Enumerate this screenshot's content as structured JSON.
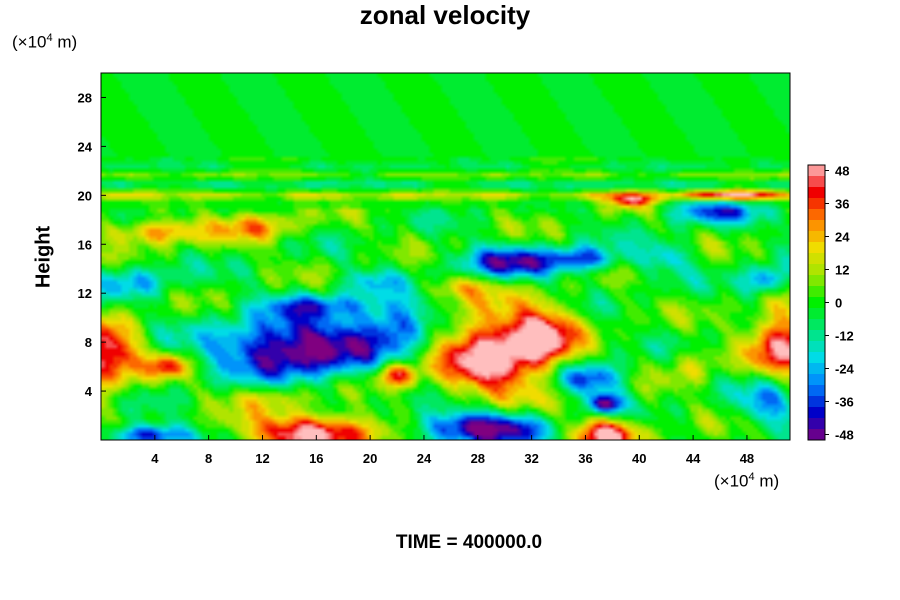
{
  "chart_data": {
    "type": "heatmap",
    "title": "zonal velocity",
    "ylabel": "Height",
    "xlabel": "",
    "x_unit": "(×10^4 m)",
    "y_unit": "(×10^4 m)",
    "x_unit_parts": {
      "prefix": "(×10",
      "exp": "4",
      "suffix": " m)"
    },
    "y_unit_parts": {
      "prefix": "(×10",
      "exp": "4",
      "suffix": " m)"
    },
    "xlim": [
      0,
      51.2
    ],
    "ylim": [
      0,
      30
    ],
    "x_ticks": [
      "4",
      "8",
      "12",
      "16",
      "20",
      "24",
      "28",
      "32",
      "36",
      "40",
      "44",
      "48"
    ],
    "y_ticks": [
      "4",
      "8",
      "12",
      "16",
      "20",
      "24",
      "28"
    ],
    "colorbar": {
      "range": [
        -50,
        50
      ],
      "labels": [
        "48",
        "36",
        "24",
        "12",
        "0",
        "-12",
        "-24",
        "-36",
        "-48"
      ],
      "low_color": "#800080",
      "high_color": "#ffc0c0"
    },
    "features": [
      {
        "x": 14.5,
        "y": 7.5,
        "rx": 6.0,
        "ry": 2.5,
        "value": -50
      },
      {
        "x": 22.0,
        "y": 9.5,
        "rx": 3.0,
        "ry": 2.0,
        "value": -30
      },
      {
        "x": 29.0,
        "y": 7.0,
        "rx": 4.0,
        "ry": 3.5,
        "value": 48
      },
      {
        "x": 33.0,
        "y": 8.5,
        "rx": 2.5,
        "ry": 2.5,
        "value": 35
      },
      {
        "x": 16.0,
        "y": 0.6,
        "rx": 5.0,
        "ry": 1.5,
        "value": 48
      },
      {
        "x": 37.5,
        "y": 0.5,
        "rx": 2.5,
        "ry": 1.3,
        "value": 45
      },
      {
        "x": 28.0,
        "y": 1.0,
        "rx": 5.0,
        "ry": 1.4,
        "value": -48
      },
      {
        "x": 3.5,
        "y": 0.4,
        "rx": 3.0,
        "ry": 0.9,
        "value": -40
      },
      {
        "x": 0.5,
        "y": 7.0,
        "rx": 2.2,
        "ry": 2.8,
        "value": 42
      },
      {
        "x": 50.5,
        "y": 8.0,
        "rx": 2.2,
        "ry": 3.0,
        "value": 40
      },
      {
        "x": 30.5,
        "y": 14.5,
        "rx": 4.0,
        "ry": 1.3,
        "value": -35
      },
      {
        "x": 36.0,
        "y": 14.8,
        "rx": 2.5,
        "ry": 1.0,
        "value": -30
      },
      {
        "x": 36.5,
        "y": 5.0,
        "rx": 2.5,
        "ry": 1.3,
        "value": -32
      },
      {
        "x": 37.5,
        "y": 3.0,
        "rx": 1.2,
        "ry": 0.8,
        "value": -42
      },
      {
        "x": 22.0,
        "y": 5.3,
        "rx": 1.5,
        "ry": 1.0,
        "value": 36
      },
      {
        "x": 4.0,
        "y": 17.0,
        "rx": 3.5,
        "ry": 1.0,
        "value": 28
      },
      {
        "x": 11.5,
        "y": 17.5,
        "rx": 3.0,
        "ry": 1.2,
        "value": 22
      },
      {
        "x": 45.5,
        "y": 18.7,
        "rx": 3.5,
        "ry": 1.0,
        "value": -28
      },
      {
        "x": 39.5,
        "y": 19.6,
        "rx": 1.8,
        "ry": 0.6,
        "value": 38
      },
      {
        "x": 47.0,
        "y": 20.0,
        "rx": 2.8,
        "ry": 0.4,
        "value": 42
      },
      {
        "x": 49.5,
        "y": 13.0,
        "rx": 1.8,
        "ry": 1.2,
        "value": -30
      },
      {
        "x": 2.5,
        "y": 13.0,
        "rx": 3.0,
        "ry": 1.4,
        "value": -20
      },
      {
        "x": 12.5,
        "y": 3.5,
        "rx": 3.0,
        "ry": 1.1,
        "value": 15
      },
      {
        "x": 5.0,
        "y": 6.0,
        "rx": 1.5,
        "ry": 1.0,
        "value": 30
      },
      {
        "x": 20.0,
        "y": 13.0,
        "rx": 2.5,
        "ry": 1.0,
        "value": -15
      },
      {
        "x": 26.5,
        "y": 12.5,
        "rx": 2.5,
        "ry": 1.0,
        "value": 15
      },
      {
        "x": 44.0,
        "y": 6.0,
        "rx": 2.0,
        "ry": 1.5,
        "value": 12
      },
      {
        "x": 49.5,
        "y": 3.0,
        "rx": 2.0,
        "ry": 2.0,
        "value": -25
      },
      {
        "x": 42.0,
        "y": 15.0,
        "rx": 2.0,
        "ry": 1.2,
        "value": -18
      },
      {
        "x": 16.0,
        "y": 11.0,
        "rx": 4.0,
        "ry": 1.0,
        "value": -22
      }
    ],
    "bands": [
      {
        "y": 20.0,
        "half_width": 0.35,
        "value": 20
      },
      {
        "y": 20.9,
        "half_width": 0.45,
        "value": -12
      },
      {
        "y": 21.6,
        "half_width": 0.3,
        "value": 10
      },
      {
        "y": 22.4,
        "half_width": 0.35,
        "value": -8
      }
    ],
    "grid": false
  },
  "time_label": "TIME = 400000.0"
}
